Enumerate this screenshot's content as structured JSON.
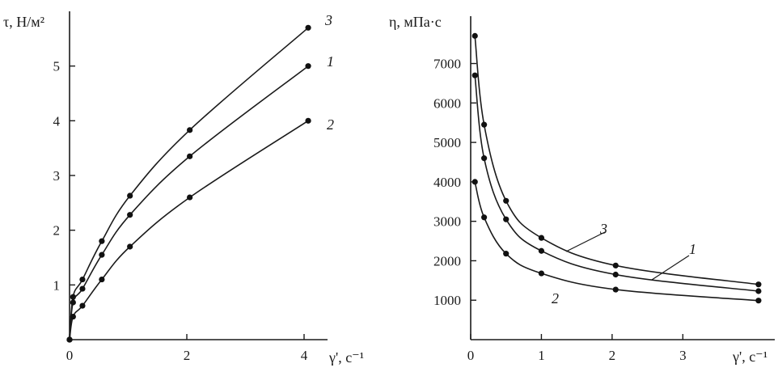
{
  "chart_data": [
    {
      "type": "line",
      "ylabel": "τ, Н/м²",
      "xlabel": "γ', с⁻¹",
      "xlim": [
        0,
        4.4
      ],
      "ylim": [
        0,
        6
      ],
      "xticks": [
        0,
        2,
        4
      ],
      "yticks": [
        1,
        2,
        3,
        4,
        5
      ],
      "series": [
        {
          "name": "3",
          "x": [
            0,
            0.06,
            0.22,
            0.55,
            1.03,
            2.05,
            4.07
          ],
          "y": [
            0,
            0.78,
            1.1,
            1.8,
            2.63,
            3.83,
            5.7
          ]
        },
        {
          "name": "1",
          "x": [
            0,
            0.06,
            0.22,
            0.55,
            1.03,
            2.05,
            4.07
          ],
          "y": [
            0,
            0.68,
            0.93,
            1.55,
            2.28,
            3.35,
            5.0
          ]
        },
        {
          "name": "2",
          "x": [
            0,
            0.06,
            0.22,
            0.55,
            1.03,
            2.05,
            4.07
          ],
          "y": [
            0,
            0.42,
            0.62,
            1.1,
            1.7,
            2.6,
            4.0
          ]
        }
      ]
    },
    {
      "type": "line",
      "ylabel": "η, мПа·с",
      "xlabel": "γ', с⁻¹",
      "xlim": [
        0,
        4.3
      ],
      "ylim": [
        0,
        8200
      ],
      "xticks": [
        0,
        1,
        2,
        3
      ],
      "yticks": [
        1000,
        2000,
        3000,
        4000,
        5000,
        6000,
        7000
      ],
      "series": [
        {
          "name": "3",
          "x": [
            0.06,
            0.19,
            0.5,
            1.0,
            2.05,
            4.07
          ],
          "y": [
            7700,
            5450,
            3520,
            2580,
            1880,
            1400
          ]
        },
        {
          "name": "1",
          "x": [
            0.06,
            0.19,
            0.5,
            1.0,
            2.05,
            4.07
          ],
          "y": [
            6700,
            4600,
            3050,
            2250,
            1650,
            1230
          ]
        },
        {
          "name": "2",
          "x": [
            0.06,
            0.19,
            0.5,
            1.0,
            2.05,
            4.07
          ],
          "y": [
            4000,
            3100,
            2180,
            1680,
            1270,
            990
          ]
        }
      ]
    }
  ]
}
